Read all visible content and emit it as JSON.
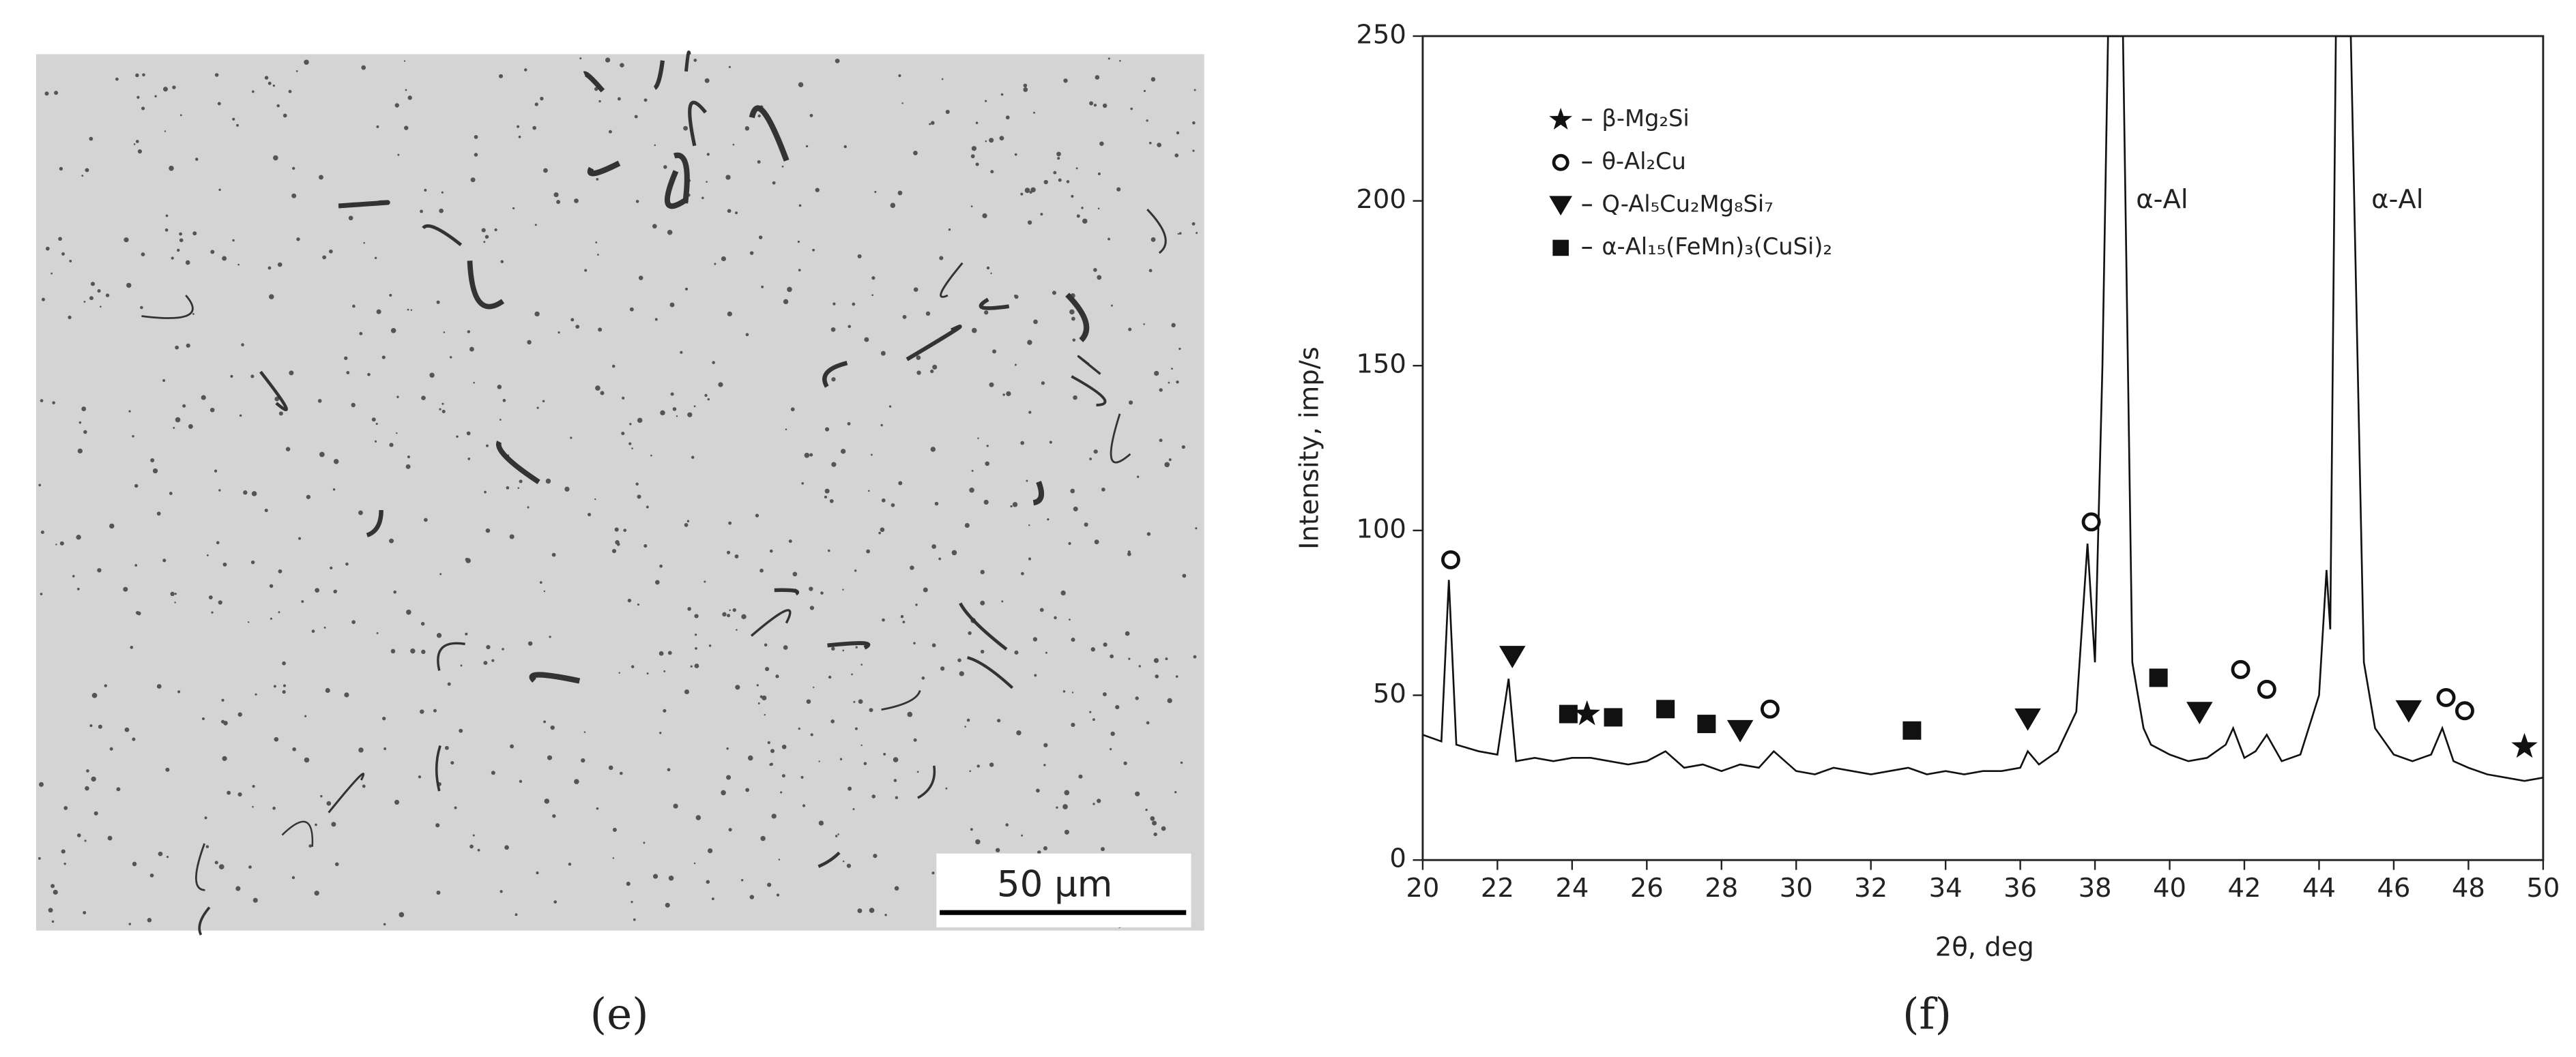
{
  "micrograph": {
    "scale_bar_label": "50 μm",
    "panel_label": "(e)"
  },
  "chart_data": {
    "type": "line",
    "panel_label": "(f)",
    "x_label": "2θ, deg",
    "y_label": "Intensity, imp/s",
    "xlim": [
      20,
      50
    ],
    "xticks": [
      20,
      22,
      24,
      26,
      28,
      30,
      32,
      34,
      36,
      38,
      40,
      42,
      44,
      46,
      48,
      50
    ],
    "ylim": [
      0,
      250
    ],
    "yticks": [
      0,
      50,
      100,
      150,
      200,
      250
    ],
    "series": [
      {
        "color": "#111111",
        "x": [
          20,
          20.5,
          20.7,
          20.9,
          21.5,
          22,
          22.3,
          22.5,
          23,
          23.5,
          24,
          24.5,
          25,
          25.5,
          26,
          26.5,
          27,
          27.5,
          28,
          28.5,
          29,
          29.4,
          30,
          30.5,
          31,
          31.5,
          32,
          32.5,
          33,
          33.5,
          34,
          34.5,
          35,
          35.5,
          36,
          36.2,
          36.5,
          37,
          37.5,
          37.8,
          38,
          38.2,
          38.35,
          38.75,
          39,
          39.3,
          39.5,
          40,
          40.5,
          41,
          41.5,
          41.7,
          42,
          42.3,
          42.6,
          43,
          43.5,
          44,
          44.2,
          44.3,
          44.45,
          44.85,
          45.2,
          45.5,
          46,
          46.5,
          47,
          47.3,
          47.6,
          48,
          48.5,
          49,
          49.5,
          50
        ],
        "values": [
          38,
          36,
          85,
          35,
          33,
          32,
          55,
          30,
          31,
          30,
          31,
          31,
          30,
          29,
          30,
          33,
          28,
          29,
          27,
          29,
          28,
          33,
          27,
          26,
          28,
          27,
          26,
          27,
          28,
          26,
          27,
          26,
          27,
          27,
          28,
          33,
          29,
          33,
          45,
          96,
          60,
          150,
          250,
          250,
          60,
          40,
          35,
          32,
          30,
          31,
          35,
          40,
          31,
          33,
          38,
          30,
          32,
          50,
          88,
          70,
          250,
          250,
          60,
          40,
          32,
          30,
          32,
          40,
          30,
          28,
          26,
          25,
          24,
          25
        ]
      }
    ],
    "phases": [
      {
        "name": "β-Mg₂Si",
        "marker": "star",
        "x": [
          24.4,
          49.5
        ],
        "y": [
          44.3,
          34.4
        ]
      },
      {
        "name": "θ-Al₂Cu",
        "marker": "circle",
        "x": [
          20.75,
          29.3,
          37.9,
          41.9,
          42.6,
          47.4,
          47.9
        ],
        "y": [
          91.1,
          45.8,
          102.6,
          57.8,
          51.8,
          49.3,
          45.3
        ]
      },
      {
        "name": "Q-Al₅Cu₂Mg₈Si₇",
        "marker": "triangle",
        "x": [
          22.4,
          28.5,
          36.2,
          40.8,
          46.4
        ],
        "y": [
          61.8,
          39.3,
          42.8,
          44.8,
          45.3
        ]
      },
      {
        "name": "α-Al₁₅(FeMn)₃(CuSi)₂",
        "marker": "square",
        "x": [
          23.9,
          25.1,
          26.5,
          27.6,
          33.1,
          39.7
        ],
        "y": [
          44.3,
          43.3,
          45.8,
          41.3,
          39.3,
          55.3
        ]
      }
    ],
    "annotations": [
      {
        "text": "α-Al",
        "x": 39.1,
        "y": 200
      },
      {
        "text": "α-Al",
        "x": 45.4,
        "y": 200
      }
    ]
  }
}
